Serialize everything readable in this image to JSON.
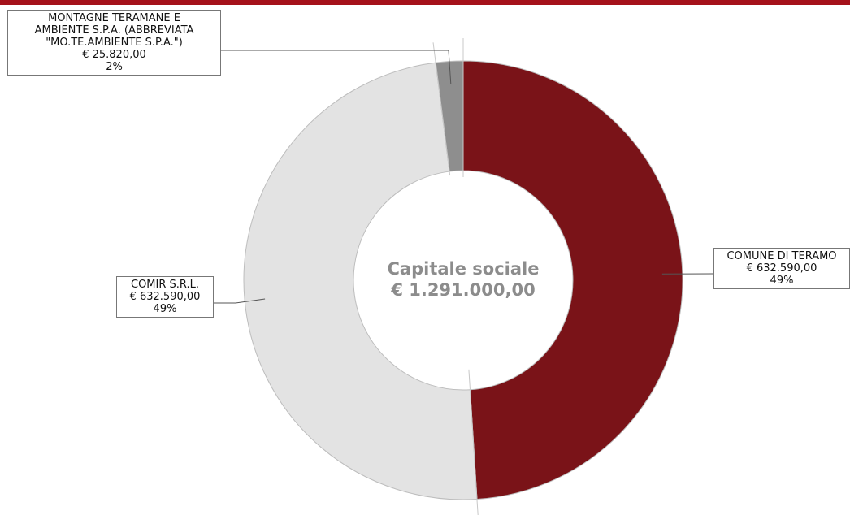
{
  "chart_data": {
    "type": "pie",
    "donut": true,
    "center": {
      "title": "Capitale sociale",
      "value": "€ 1.291.000,00"
    },
    "slices": [
      {
        "label": "COMUNE DI TERAMO",
        "label_lines": [
          "COMUNE DI TERAMO"
        ],
        "value": 632590.0,
        "value_text": "€ 632.590,00",
        "percent": "49%",
        "color": "#7a1318"
      },
      {
        "label": "COMIR S.R.L.",
        "label_lines": [
          "COMIR S.R.L."
        ],
        "value": 632590.0,
        "value_text": "€ 632.590,00",
        "percent": "49%",
        "color": "#e3e3e3"
      },
      {
        "label": "MONTAGNE TERAMANE E AMBIENTE S.P.A. (ABBREVIATA \"MO.TE.AMBIENTE S.P.A.\")",
        "label_lines": [
          "MONTAGNE TERAMANE E",
          "AMBIENTE S.P.A.  (ABBREVIATA",
          "\"MO.TE.AMBIENTE S.P.A.\")"
        ],
        "value": 25820.0,
        "value_text": "€ 25.820,00",
        "percent": "2%",
        "color": "#8e8e8e"
      }
    ]
  },
  "theme": {
    "top_bar_color": "#a5121b",
    "slice_stroke": "#bdbdbd",
    "leader_color": "#555555"
  }
}
